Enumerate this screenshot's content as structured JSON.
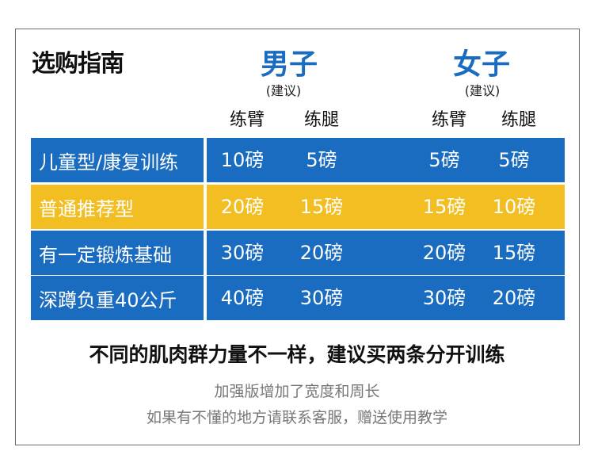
{
  "title": "选购指南",
  "men": {
    "label": "男子",
    "sub": "(建议)"
  },
  "women": {
    "label": "女子",
    "sub": "(建议)"
  },
  "columns": {
    "arm": "练臂",
    "leg": "练腿"
  },
  "rows": [
    {
      "label": "儿童型/康复训练",
      "color": "blue",
      "men_arm": "10磅",
      "men_leg": "5磅",
      "women_arm": "5磅",
      "women_leg": "5磅"
    },
    {
      "label": "普通推荐型",
      "color": "yellow",
      "men_arm": "20磅",
      "men_leg": "15磅",
      "women_arm": "15磅",
      "women_leg": "10磅"
    },
    {
      "label": "有一定锻炼基础",
      "color": "blue",
      "men_arm": "30磅",
      "men_leg": "20磅",
      "women_arm": "20磅",
      "women_leg": "15磅"
    },
    {
      "label": "深蹲负重40公斤",
      "color": "blue",
      "men_arm": "40磅",
      "men_leg": "30磅",
      "women_arm": "30磅",
      "women_leg": "20磅"
    }
  ],
  "notes": {
    "main": "不同的肌肉群力量不一样，建议买两条分开训练",
    "line1": "加强版增加了宽度和周长",
    "line2": "如果有不懂的地方请联系客服，赠送使用教学"
  },
  "colors": {
    "blue": "#1a6cc0",
    "yellow": "#f2be22"
  }
}
